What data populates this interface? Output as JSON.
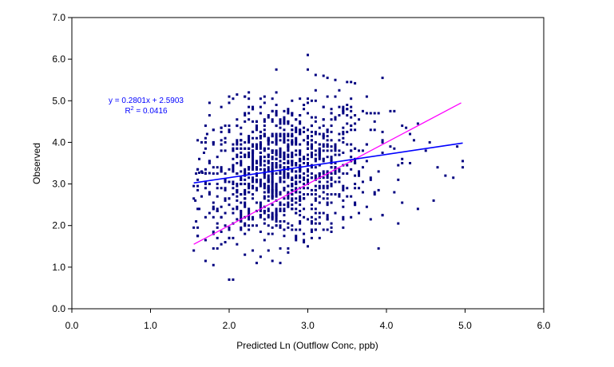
{
  "chart_data": {
    "type": "scatter",
    "title": "",
    "xlabel": "Predicted Ln (Outflow Conc, ppb)",
    "ylabel": "Observed",
    "xlim": [
      0,
      6
    ],
    "ylim": [
      0,
      7
    ],
    "x_ticks": [
      "0.0",
      "1.0",
      "2.0",
      "3.0",
      "4.0",
      "5.0",
      "6.0"
    ],
    "y_ticks": [
      "0.0",
      "1.0",
      "2.0",
      "3.0",
      "4.0",
      "5.0",
      "6.0",
      "7.0"
    ],
    "grid": false,
    "legend": "none",
    "colors": {
      "points": "#000080",
      "trend_line": "#0000ff",
      "one_to_one_line": "#ff00ff",
      "annotation": "#0000ff"
    },
    "trendline": {
      "slope": 0.2801,
      "intercept": 2.5903,
      "r_squared": 0.0416,
      "x_range": [
        1.55,
        4.97
      ],
      "equation_label": "y = 0.2801x + 2.5903",
      "r2_label_prefix": "R",
      "r2_label_sup": "2",
      "r2_label_suffix": " = 0.0416"
    },
    "one_to_one_line": {
      "x_range": [
        1.55,
        4.95
      ]
    },
    "cloud": {
      "n_points": 1150,
      "x_range": [
        1.55,
        4.97
      ],
      "y_range": [
        0.7,
        6.1
      ],
      "mean": [
        2.65,
        3.3
      ],
      "sd": [
        0.55,
        0.85
      ]
    },
    "points": [
      [
        2.0,
        0.7
      ],
      [
        2.05,
        0.7
      ],
      [
        1.8,
        1.05
      ],
      [
        2.2,
        1.3
      ],
      [
        2.35,
        1.1
      ],
      [
        2.55,
        1.15
      ],
      [
        2.65,
        1.1
      ],
      [
        1.7,
        1.15
      ],
      [
        2.4,
        1.25
      ],
      [
        2.1,
        1.55
      ],
      [
        2.75,
        1.35
      ],
      [
        2.95,
        1.6
      ],
      [
        1.6,
        1.95
      ],
      [
        1.58,
        2.1
      ],
      [
        1.62,
        2.4
      ],
      [
        1.57,
        2.6
      ],
      [
        1.6,
        2.85
      ],
      [
        1.58,
        3.25
      ],
      [
        1.62,
        3.27
      ],
      [
        1.66,
        3.27
      ],
      [
        1.7,
        3.26
      ],
      [
        1.75,
        3.26
      ],
      [
        1.8,
        3.25
      ],
      [
        1.62,
        3.6
      ],
      [
        1.68,
        3.75
      ],
      [
        1.72,
        4.2
      ],
      [
        1.8,
        1.8
      ],
      [
        1.85,
        2.4
      ],
      [
        1.9,
        2.2
      ],
      [
        3.0,
        6.1
      ],
      [
        3.0,
        5.75
      ],
      [
        2.6,
        5.75
      ],
      [
        3.25,
        5.55
      ],
      [
        3.35,
        5.5
      ],
      [
        3.5,
        5.45
      ],
      [
        3.55,
        5.45
      ],
      [
        3.6,
        5.42
      ],
      [
        3.1,
        5.62
      ],
      [
        3.2,
        5.6
      ],
      [
        3.95,
        5.55
      ],
      [
        2.9,
        5.05
      ],
      [
        2.2,
        5.1
      ],
      [
        2.1,
        5.15
      ],
      [
        2.0,
        5.1
      ],
      [
        2.25,
        5.2
      ],
      [
        3.35,
        5.1
      ],
      [
        3.7,
        4.75
      ],
      [
        3.75,
        4.7
      ],
      [
        3.8,
        4.7
      ],
      [
        3.85,
        4.7
      ],
      [
        3.9,
        4.7
      ],
      [
        3.6,
        4.65
      ],
      [
        4.2,
        4.4
      ],
      [
        4.25,
        4.35
      ],
      [
        4.3,
        4.2
      ],
      [
        4.05,
        4.75
      ],
      [
        4.35,
        4.05
      ],
      [
        4.05,
        3.9
      ],
      [
        4.1,
        3.85
      ],
      [
        4.2,
        3.6
      ],
      [
        4.3,
        3.5
      ],
      [
        4.4,
        2.4
      ],
      [
        4.6,
        2.6
      ],
      [
        4.2,
        2.55
      ],
      [
        4.65,
        3.4
      ],
      [
        4.75,
        3.2
      ],
      [
        4.85,
        3.15
      ],
      [
        4.9,
        3.9
      ],
      [
        4.97,
        3.4
      ],
      [
        4.97,
        3.55
      ],
      [
        4.5,
        3.8
      ],
      [
        4.55,
        4.0
      ],
      [
        3.8,
        2.15
      ],
      [
        3.95,
        2.25
      ],
      [
        3.65,
        2.3
      ],
      [
        3.3,
        2.05
      ],
      [
        3.1,
        1.9
      ],
      [
        2.85,
        1.75
      ],
      [
        2.5,
        1.8
      ],
      [
        2.3,
        2.0
      ],
      [
        2.25,
        1.9
      ],
      [
        3.0,
        4.95
      ],
      [
        3.05,
        5.0
      ],
      [
        2.95,
        4.9
      ],
      [
        3.4,
        4.85
      ],
      [
        3.55,
        4.6
      ],
      [
        3.6,
        4.45
      ]
    ]
  }
}
